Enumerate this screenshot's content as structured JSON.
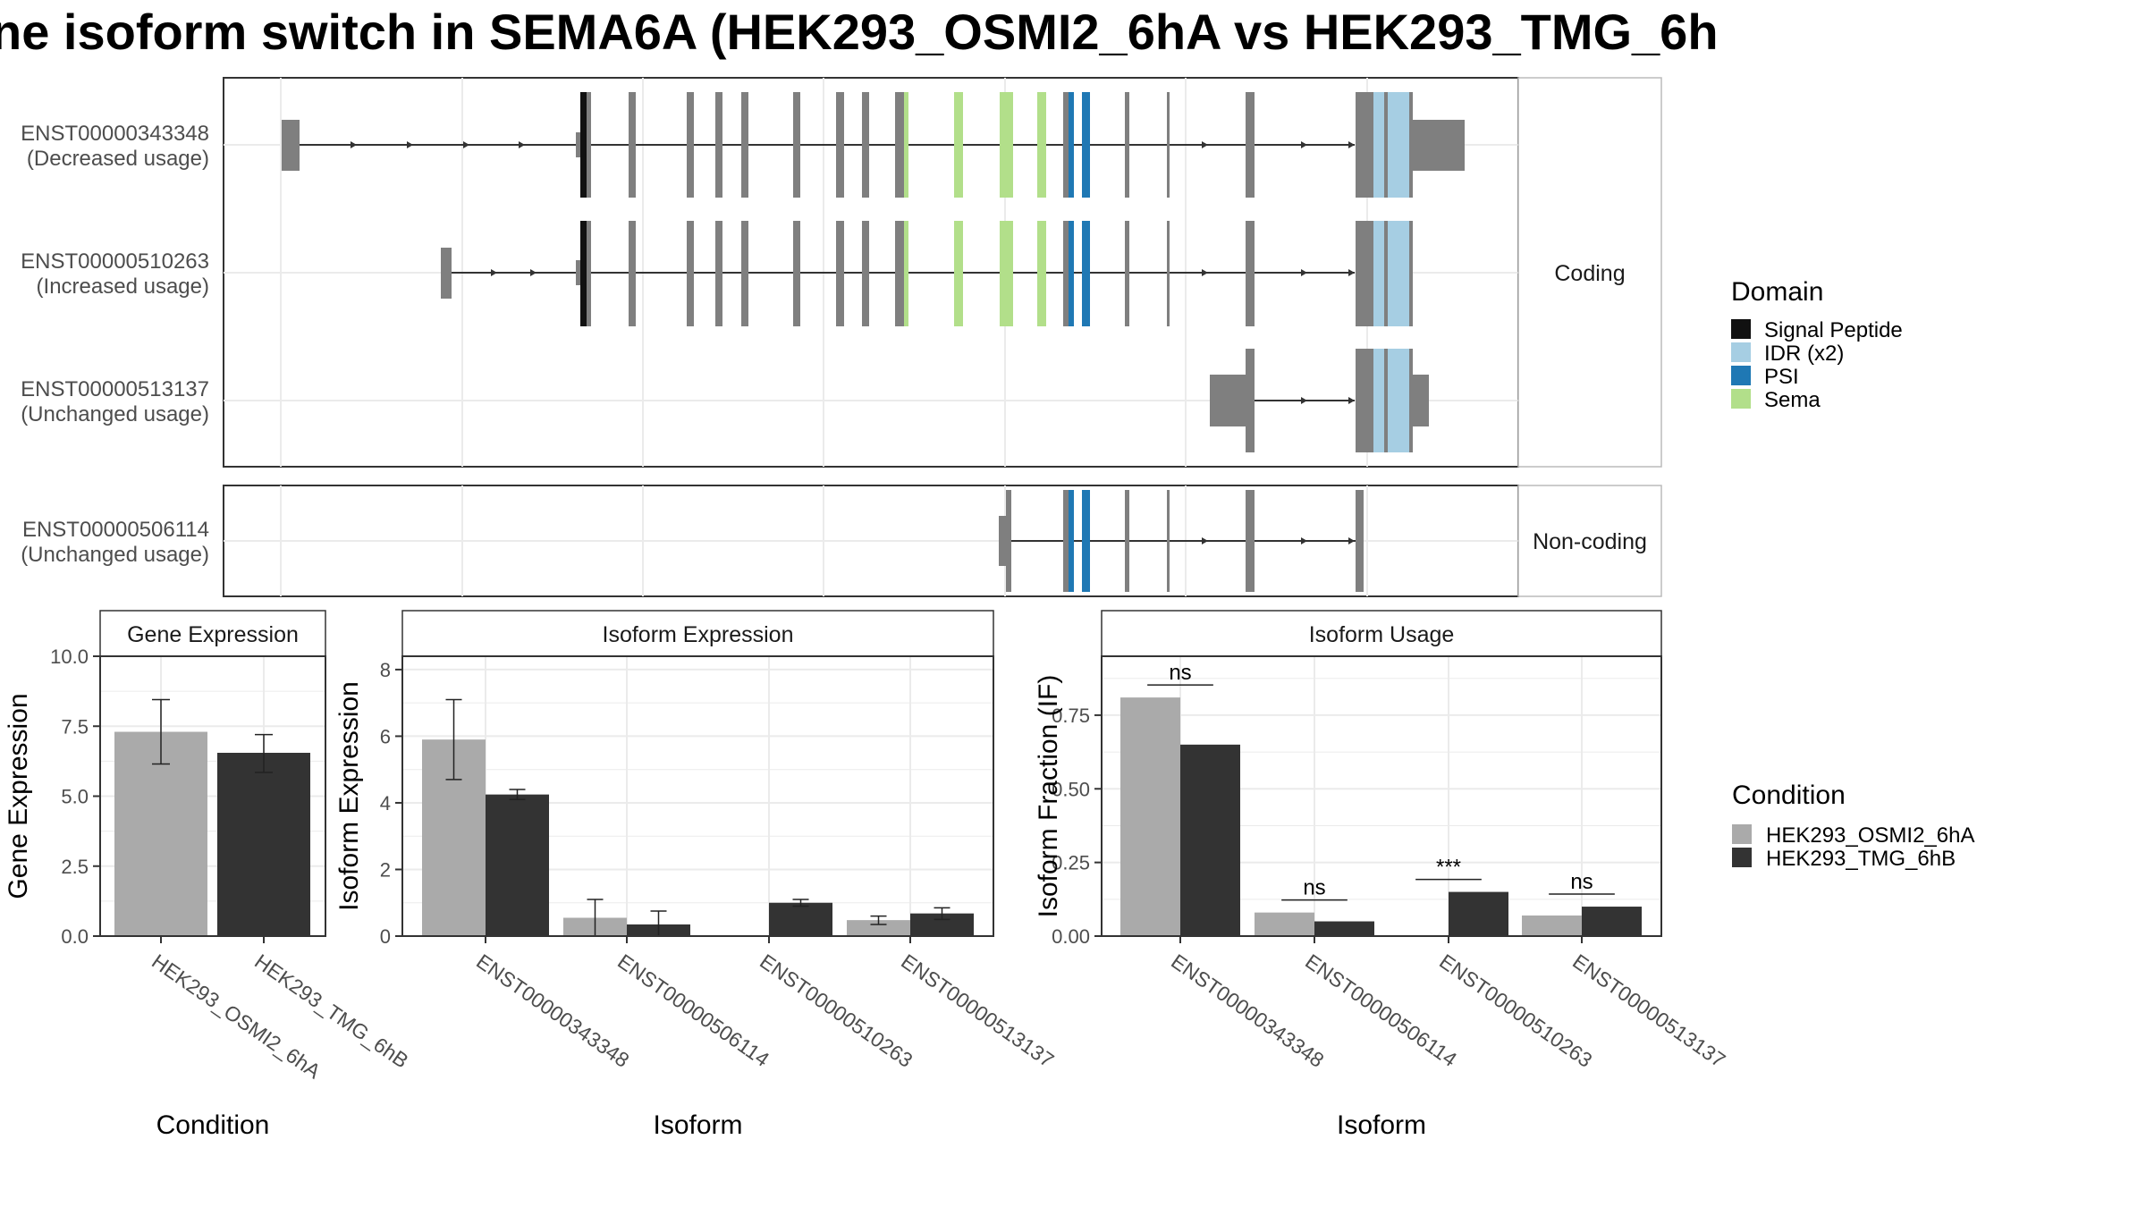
{
  "title": "ne isoform switch in SEMA6A (HEK293_OSMI2_6hA vs HEK293_TMG_6h",
  "colors": {
    "signal_peptide": "#111111",
    "idr": "#a6cee3",
    "psi": "#1f78b4",
    "sema": "#b2df8a",
    "exon": "#7f7f7f",
    "cond_a": "#aaaaaa",
    "cond_b": "#333333",
    "grid": "#ebebeb",
    "panel_border": "#333333",
    "strip_border": "#bbbbbb"
  },
  "transcript_panel": {
    "facets": [
      "Coding",
      "Non-coding"
    ],
    "transcripts": [
      {
        "id": "ENST00000343348",
        "usage": "(Decreased usage)",
        "facet": "Coding"
      },
      {
        "id": "ENST00000510263",
        "usage": "(Increased usage)",
        "facet": "Coding"
      },
      {
        "id": "ENST00000513137",
        "usage": "(Unchanged usage)",
        "facet": "Coding"
      },
      {
        "id": "ENST00000506114",
        "usage": "(Unchanged usage)",
        "facet": "Non-coding"
      }
    ],
    "domain_legend": {
      "title": "Domain",
      "items": [
        {
          "label": "Signal Peptide",
          "color_key": "signal_peptide"
        },
        {
          "label": "IDR (x2)",
          "color_key": "idr"
        },
        {
          "label": "PSI",
          "color_key": "psi"
        },
        {
          "label": "Sema",
          "color_key": "sema"
        }
      ]
    }
  },
  "condition_legend": {
    "title": "Condition",
    "items": [
      {
        "label": "HEK293_OSMI2_6hA",
        "color_key": "cond_a"
      },
      {
        "label": "HEK293_TMG_6hB",
        "color_key": "cond_b"
      }
    ]
  },
  "chart_data": [
    {
      "type": "bar",
      "title": "Gene Expression",
      "xlabel": "Condition",
      "ylabel": "Gene Expression",
      "ylim": [
        0,
        10
      ],
      "yticks": [
        "0.0",
        "2.5",
        "5.0",
        "7.5",
        "10.0"
      ],
      "categories": [
        "HEK293_OSMI2_6hA",
        "HEK293_TMG_6hB"
      ],
      "values": [
        7.3,
        6.55
      ],
      "errors": [
        [
          6.15,
          8.45
        ],
        [
          5.85,
          7.2
        ]
      ]
    },
    {
      "type": "bar",
      "title": "Isoform Expression",
      "xlabel": "Isoform",
      "ylabel": "Isoform Expression",
      "ylim": [
        0,
        8.4
      ],
      "yticks": [
        "0",
        "2",
        "4",
        "6",
        "8"
      ],
      "categories": [
        "ENST00000343348",
        "ENST00000506114",
        "ENST00000510263",
        "ENST00000513137"
      ],
      "series": [
        {
          "name": "HEK293_OSMI2_6hA",
          "values": [
            5.9,
            0.55,
            0.0,
            0.48
          ],
          "errors": [
            [
              4.7,
              7.1
            ],
            [
              0.0,
              1.1
            ],
            [
              0.0,
              0.0
            ],
            [
              0.35,
              0.6
            ]
          ]
        },
        {
          "name": "HEK293_TMG_6hB",
          "values": [
            4.25,
            0.35,
            1.0,
            0.68
          ],
          "errors": [
            [
              4.1,
              4.4
            ],
            [
              0.0,
              0.75
            ],
            [
              0.9,
              1.1
            ],
            [
              0.5,
              0.85
            ]
          ]
        }
      ]
    },
    {
      "type": "bar",
      "title": "Isoform Usage",
      "xlabel": "Isoform",
      "ylabel": "Isoform Fraction (IF)",
      "ylim": [
        0,
        0.95
      ],
      "yticks": [
        "0.00",
        "0.25",
        "0.50",
        "0.75"
      ],
      "categories": [
        "ENST00000343348",
        "ENST00000506114",
        "ENST00000510263",
        "ENST00000513137"
      ],
      "series": [
        {
          "name": "HEK293_OSMI2_6hA",
          "values": [
            0.81,
            0.08,
            0.0,
            0.07
          ]
        },
        {
          "name": "HEK293_TMG_6hB",
          "values": [
            0.65,
            0.05,
            0.15,
            0.1
          ]
        }
      ],
      "significance": [
        "ns",
        "ns",
        "***",
        "ns"
      ]
    }
  ]
}
